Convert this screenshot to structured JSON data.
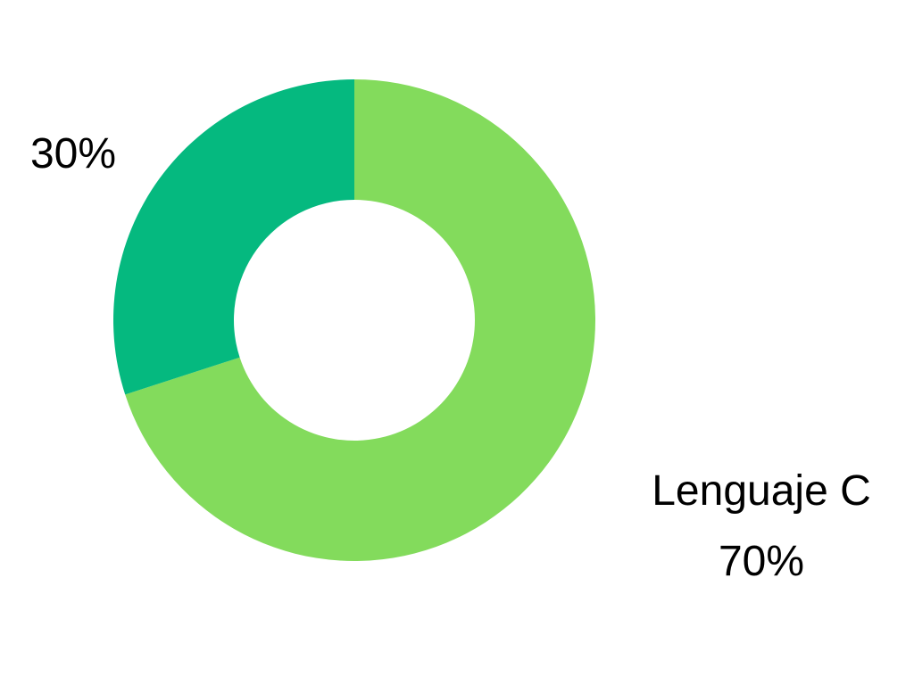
{
  "chart_data": {
    "type": "pie",
    "donut": true,
    "start_angle_deg": 0,
    "direction": "clockwise",
    "slices": [
      {
        "label": "Lenguaje C",
        "value": 70,
        "value_label": "70%",
        "color": "#83db5c"
      },
      {
        "label": "",
        "value": 30,
        "value_label": "30%",
        "color": "#05b97f"
      }
    ],
    "legend": "none"
  }
}
